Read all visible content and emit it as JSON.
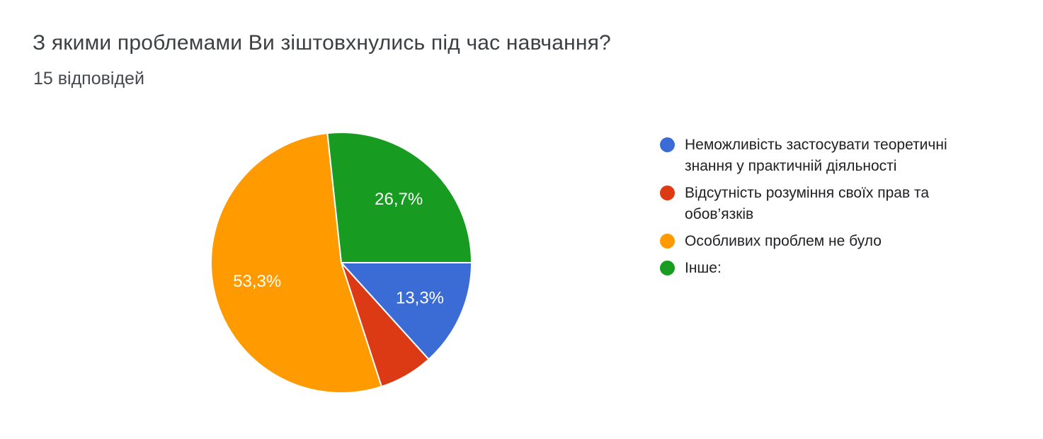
{
  "chart_data": {
    "type": "pie",
    "title": "З якими проблемами Ви зіштовхнулись під час навчання?",
    "subtitle": "15 відповідей",
    "total_responses": 15,
    "legend_position": "right",
    "start_angle_deg": 90,
    "label_radius_ratio": 0.66,
    "label_color": "#ffffff",
    "slice_border_color": "#ffffff",
    "slices": [
      {
        "id": "theory",
        "legend": "Неможливість застосувати теоретичні знання у практичній діяльності",
        "percent": 13.3,
        "label": "13,3%",
        "show_label": true,
        "color": "#3B6BD4"
      },
      {
        "id": "rights",
        "legend": "Відсутність розуміння своїх прав та обов’язків",
        "percent": 6.7,
        "label": "",
        "show_label": false,
        "color": "#DC3A15"
      },
      {
        "id": "no-problems",
        "legend": "Особливих проблем не було",
        "percent": 53.3,
        "label": "53,3%",
        "show_label": true,
        "color": "#FF9A00"
      },
      {
        "id": "other",
        "legend": "Інше:",
        "percent": 26.7,
        "label": "26,7%",
        "show_label": true,
        "color": "#179B20"
      }
    ]
  }
}
